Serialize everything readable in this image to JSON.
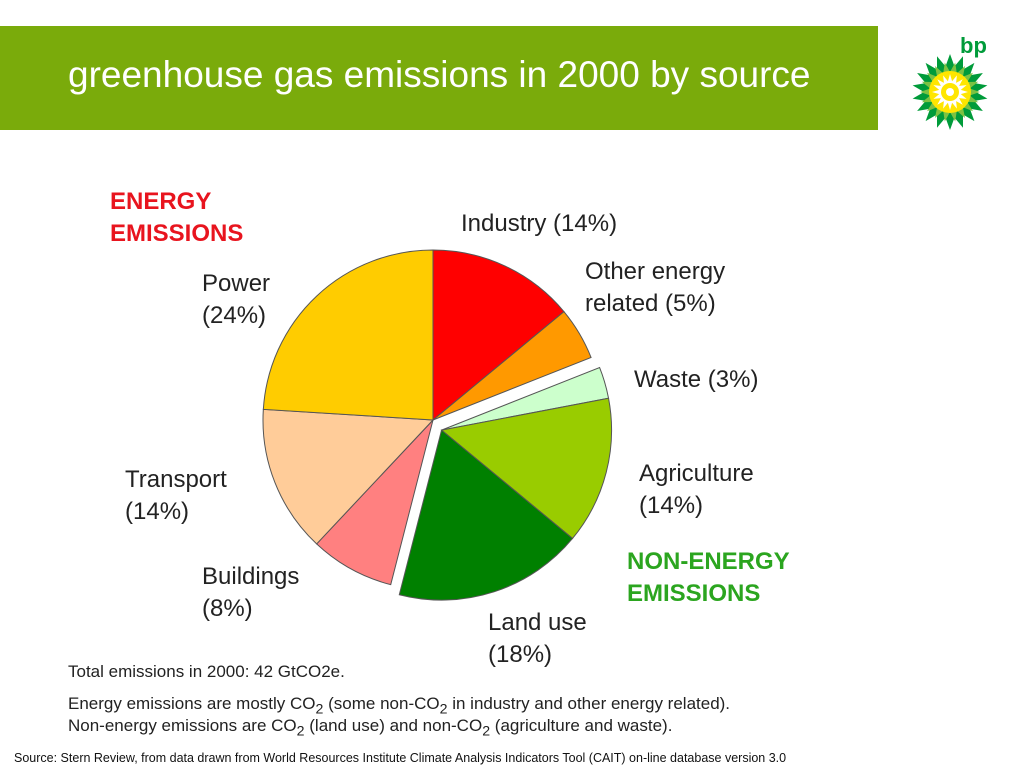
{
  "header": {
    "title": "greenhouse gas emissions in 2000 by source"
  },
  "logo": {
    "text": "bp",
    "colors": {
      "green": "#009b3a",
      "yellow": "#ffe600"
    }
  },
  "chart_data": {
    "type": "pie",
    "title": "",
    "groups": [
      {
        "name": "ENERGY EMISSIONS",
        "color": "#e8141e"
      },
      {
        "name": "NON-ENERGY EMISSIONS",
        "color": "#2ba51f"
      }
    ],
    "slices": [
      {
        "label": "Industry",
        "pct_text": "(14%)",
        "value": 14,
        "color": "#ff0000",
        "group": "energy"
      },
      {
        "label": "Other energy related",
        "pct_text": "(5%)",
        "value": 5,
        "color": "#ff9900",
        "group": "energy"
      },
      {
        "label": "Waste",
        "pct_text": "(3%)",
        "value": 3,
        "color": "#ccffcc",
        "group": "non-energy"
      },
      {
        "label": "Agriculture",
        "pct_text": "(14%)",
        "value": 14,
        "color": "#99cc00",
        "group": "non-energy"
      },
      {
        "label": "Land use",
        "pct_text": "(18%)",
        "value": 18,
        "color": "#008000",
        "group": "non-energy"
      },
      {
        "label": "Buildings",
        "pct_text": "(8%)",
        "value": 8,
        "color": "#ff8080",
        "group": "energy"
      },
      {
        "label": "Transport",
        "pct_text": "(14%)",
        "value": 14,
        "color": "#ffcc99",
        "group": "energy"
      },
      {
        "label": "Power",
        "pct_text": "(24%)",
        "value": 24,
        "color": "#ffcc00",
        "group": "energy"
      }
    ]
  },
  "labels": {
    "energy_group_line1": "ENERGY",
    "energy_group_line2": "EMISSIONS",
    "nonenergy_group_line1": "NON-ENERGY",
    "nonenergy_group_line2": "EMISSIONS",
    "industry": "Industry (14%)",
    "other_energy_line1": "Other energy",
    "other_energy_line2": "related (5%)",
    "waste": "Waste (3%)",
    "agriculture_line1": "Agriculture",
    "agriculture_line2": "(14%)",
    "land_use_line1": "Land use",
    "land_use_line2": "(18%)",
    "buildings_line1": "Buildings",
    "buildings_line2": "(8%)",
    "transport_line1": "Transport",
    "transport_line2": "(14%)",
    "power_line1": "Power",
    "power_line2": "(24%)"
  },
  "footnotes": {
    "total": "Total emissions in 2000: 42 GtCO2e.",
    "energy_note": {
      "a": "Energy emissions are mostly CO",
      "b": "2",
      "c": " (some non-CO",
      "d": "2",
      "e": " in industry and other energy related)."
    },
    "nonenergy_note": {
      "a": "Non-energy emissions are CO",
      "b": "2",
      "c": " (land use) and non-CO",
      "d": "2",
      "e": " (agriculture and waste)."
    }
  },
  "source": "Source:  Stern Review, from data drawn from World Resources Institute Climate Analysis Indicators Tool (CAIT) on-line database version 3.0"
}
